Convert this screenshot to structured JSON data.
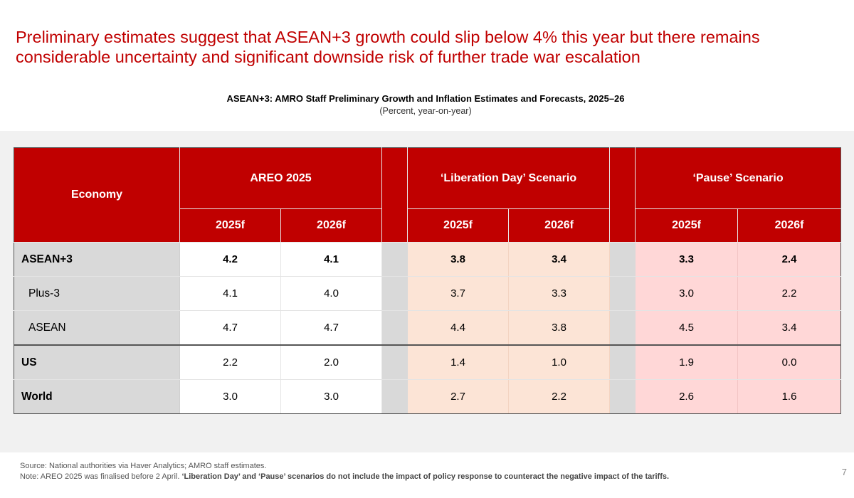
{
  "headline": "Preliminary estimates suggest that ASEAN+3 growth could slip below 4% this year but there remains considerable uncertainty and significant downside risk of further trade war escalation",
  "table": {
    "title": "ASEAN+3: AMRO Staff Preliminary Growth and Inflation Estimates and Forecasts, 2025–26",
    "subtitle": "(Percent, year-on-year)",
    "economy_header": "Economy",
    "groups": {
      "areo": "AREO 2025",
      "liberation": "‘Liberation Day’ Scenario",
      "pause": "‘Pause’ Scenario"
    },
    "years": [
      "2025f",
      "2026f",
      "2025f",
      "2026f",
      "2025f",
      "2026f"
    ],
    "rows": [
      {
        "economy": "ASEAN+3",
        "areo": [
          "4.2",
          "4.1"
        ],
        "liberation": [
          "3.8",
          "3.4"
        ],
        "pause": [
          "3.3",
          "2.4"
        ]
      },
      {
        "economy": "Plus-3",
        "areo": [
          "4.1",
          "4.0"
        ],
        "liberation": [
          "3.7",
          "3.3"
        ],
        "pause": [
          "3.0",
          "2.2"
        ]
      },
      {
        "economy": "ASEAN",
        "areo": [
          "4.7",
          "4.7"
        ],
        "liberation": [
          "4.4",
          "3.8"
        ],
        "pause": [
          "4.5",
          "3.4"
        ]
      },
      {
        "economy": "US",
        "areo": [
          "2.2",
          "2.0"
        ],
        "liberation": [
          "1.4",
          "1.0"
        ],
        "pause": [
          "1.9",
          "0.0"
        ]
      },
      {
        "economy": "World",
        "areo": [
          "3.0",
          "3.0"
        ],
        "liberation": [
          "2.7",
          "2.2"
        ],
        "pause": [
          "2.6",
          "1.6"
        ]
      }
    ]
  },
  "footer": {
    "source": "Source: National authorities via Haver Analytics; AMRO staff estimates.",
    "note_prefix": "Note: AREO 2025 was finalised before 2 April. ",
    "note_bold": "‘Liberation Day’ and ‘Pause’ scenarios do not include the impact of policy response to counteract the negative impact of the tariffs."
  },
  "page_number": "7"
}
